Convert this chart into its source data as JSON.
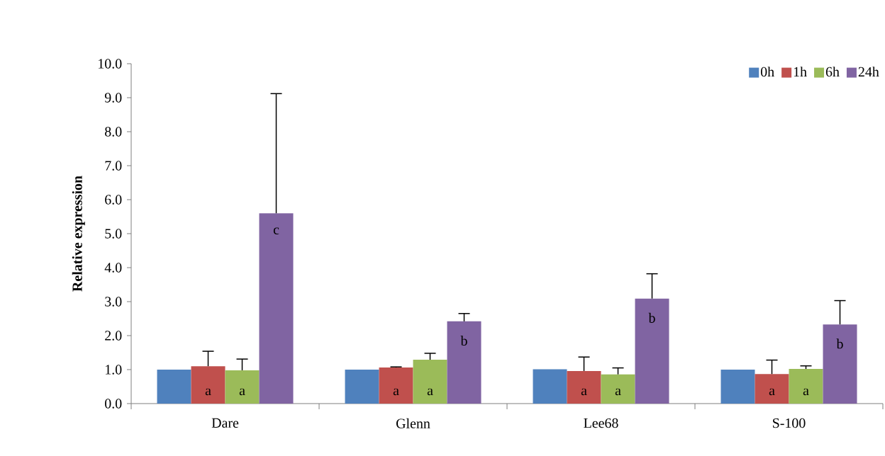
{
  "chart_data": {
    "type": "bar",
    "ylabel": "Relative expression",
    "categories": [
      "Dare",
      "Glenn",
      "Lee68",
      "S-100"
    ],
    "series": [
      {
        "name": "0h",
        "color": "#4f81bd",
        "values": [
          1.0,
          1.0,
          1.01,
          1.0
        ]
      },
      {
        "name": "1h",
        "color": "#c0504d",
        "values": [
          1.1,
          1.06,
          0.96,
          0.87
        ],
        "errors": [
          [
            1.1,
            1.54
          ],
          [
            1.06,
            1.08
          ],
          [
            0.96,
            1.37
          ],
          [
            0.87,
            1.28
          ]
        ],
        "value_labels": [
          "a",
          "a",
          "a",
          "a"
        ]
      },
      {
        "name": "6h",
        "color": "#9bbb59",
        "values": [
          0.98,
          1.29,
          0.86,
          1.02
        ],
        "errors": [
          [
            0.98,
            1.31
          ],
          [
            1.29,
            1.48
          ],
          [
            0.86,
            1.05
          ],
          [
            1.02,
            1.11
          ]
        ],
        "value_labels": [
          "a",
          "a",
          "a",
          "a"
        ]
      },
      {
        "name": "24h",
        "color": "#8064a2",
        "values": [
          5.6,
          2.42,
          3.09,
          2.33
        ],
        "errors": [
          [
            5.6,
            9.12
          ],
          [
            2.42,
            2.65
          ],
          [
            3.09,
            3.82
          ],
          [
            2.33,
            3.03
          ]
        ],
        "value_labels": [
          "c",
          "b",
          "b",
          "b"
        ]
      }
    ],
    "ylim": [
      0,
      10
    ],
    "yticks": [
      {
        "value": 0,
        "label": "0.0"
      },
      {
        "value": 1,
        "label": "1.0"
      },
      {
        "value": 2,
        "label": "2.0"
      },
      {
        "value": 3,
        "label": "3.0"
      },
      {
        "value": 4,
        "label": "4.0"
      },
      {
        "value": 5,
        "label": "5.0"
      },
      {
        "value": 6,
        "label": "6.0"
      },
      {
        "value": 7,
        "label": "7.0"
      },
      {
        "value": 8,
        "label": "8.0"
      },
      {
        "value": 9,
        "label": "9.0"
      },
      {
        "value": 10,
        "label": "10.0"
      }
    ],
    "legend": "top right",
    "grid": false
  }
}
